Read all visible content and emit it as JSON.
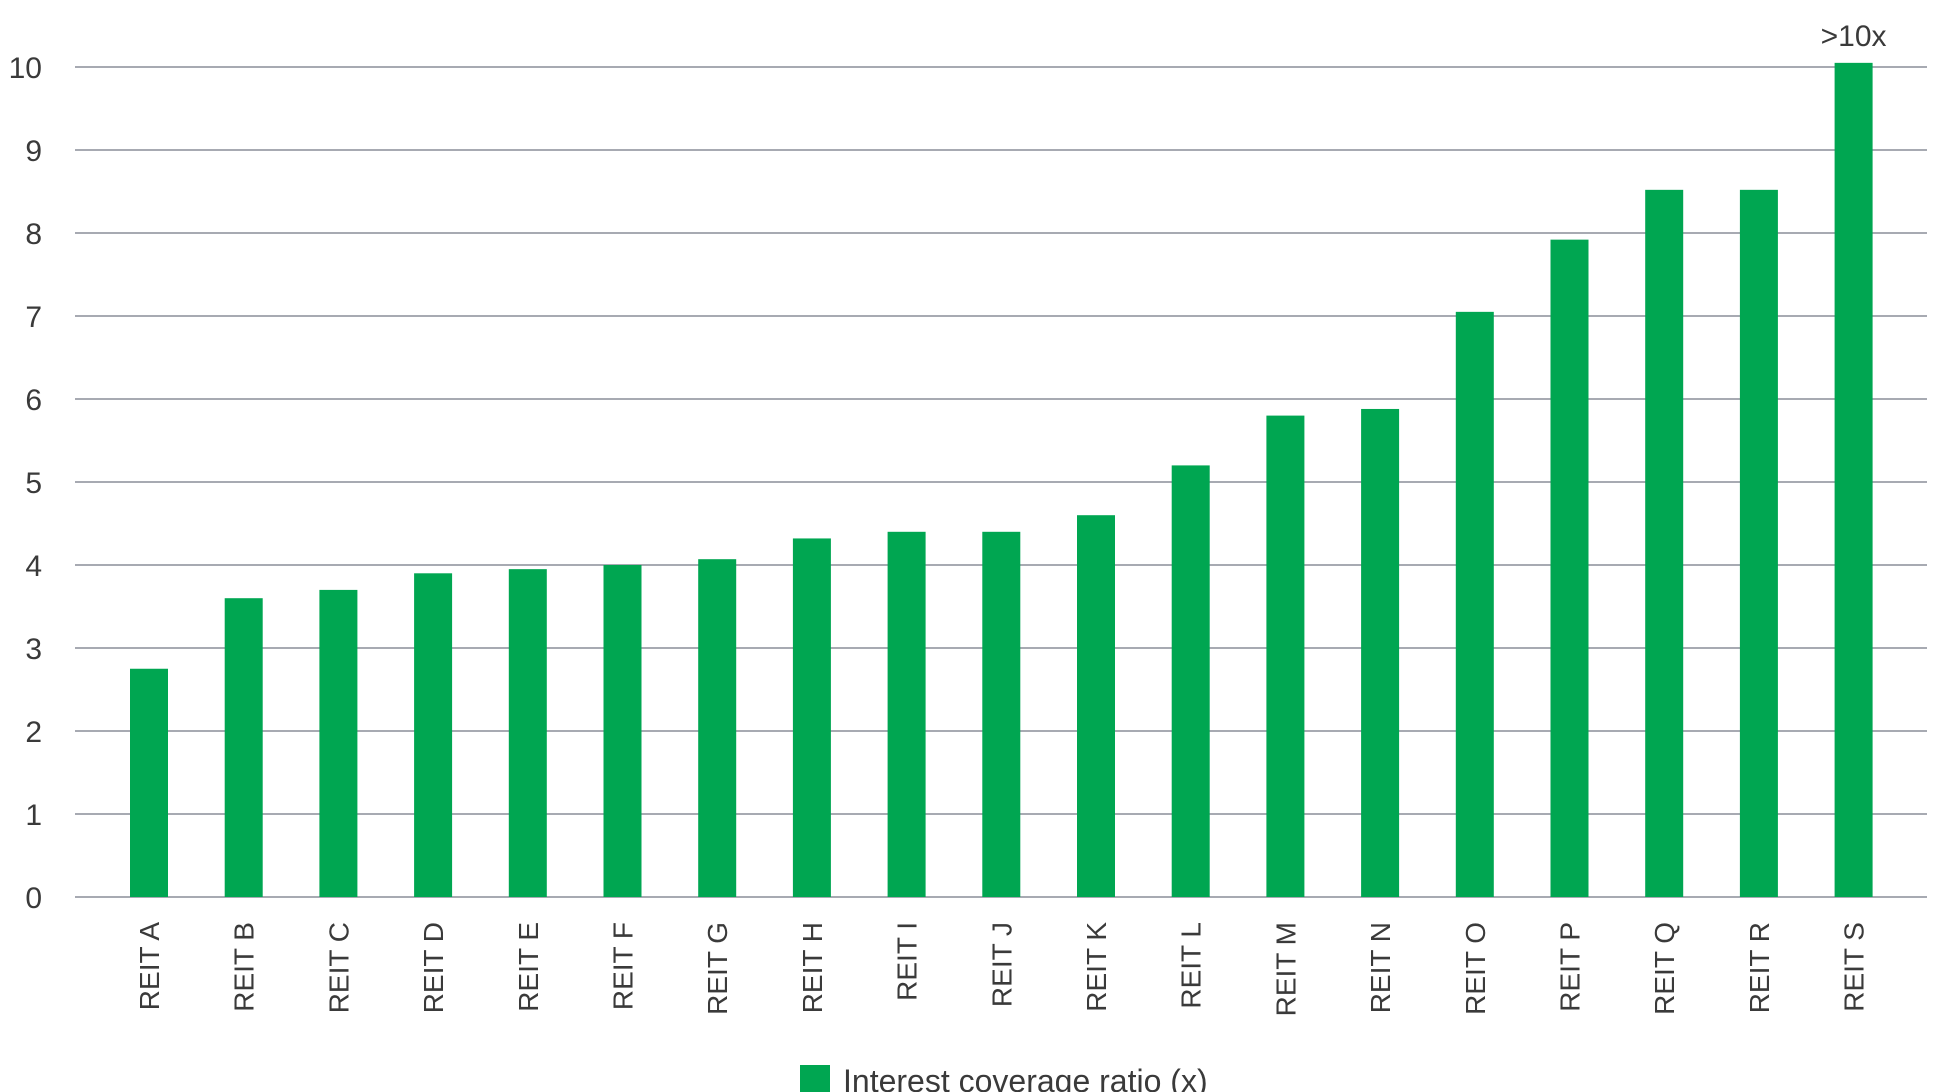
{
  "chart_data": {
    "type": "bar",
    "categories": [
      "REIT A",
      "REIT B",
      "REIT C",
      "REIT D",
      "REIT E",
      "REIT F",
      "REIT G",
      "REIT H",
      "REIT I",
      "REIT J",
      "REIT K",
      "REIT L",
      "REIT M",
      "REIT N",
      "REIT O",
      "REIT P",
      "REIT Q",
      "REIT R",
      "REIT S"
    ],
    "series": [
      {
        "name": "Interest coverage ratio (x)",
        "values": [
          2.75,
          3.6,
          3.7,
          3.9,
          3.95,
          4.0,
          4.07,
          4.32,
          4.4,
          4.4,
          4.6,
          5.2,
          5.8,
          5.88,
          7.05,
          7.92,
          8.52,
          8.52,
          10.05
        ],
        "color": "#00a651"
      }
    ],
    "data_labels": [
      {
        "category": "REIT S",
        "text": ">10x"
      }
    ],
    "ylim": [
      0,
      10
    ],
    "yticks": [
      0,
      1,
      2,
      3,
      4,
      5,
      6,
      7,
      8,
      9,
      10
    ],
    "grid": true,
    "legend": {
      "position": "bottom-center",
      "label": "Interest coverage ratio (x)"
    },
    "colors": {
      "bar": "#00a651",
      "grid": "#8a8d99",
      "text": "#3a3a3a"
    }
  }
}
